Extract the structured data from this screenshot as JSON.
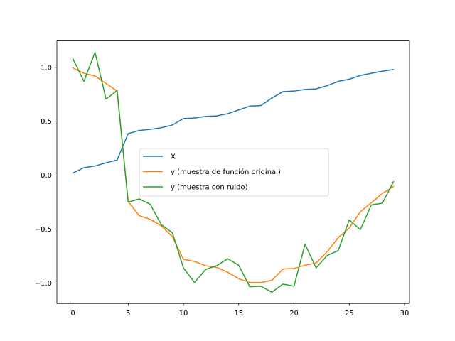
{
  "chart_data": {
    "type": "line",
    "title": "",
    "xlabel": "",
    "ylabel": "",
    "xlim": [
      -1.45,
      30.45
    ],
    "ylim": [
      -1.19,
      1.245
    ],
    "xticks": [
      0,
      5,
      10,
      15,
      20,
      25,
      30
    ],
    "yticks": [
      -1.0,
      -0.5,
      0.0,
      0.5,
      1.0
    ],
    "xtick_labels": [
      "0",
      "5",
      "10",
      "15",
      "20",
      "25",
      "30"
    ],
    "ytick_labels": [
      "−1.0",
      "−0.5",
      "0.0",
      "0.5",
      "1.0"
    ],
    "grid": false,
    "legend_position": "center",
    "x": [
      0,
      1,
      2,
      3,
      4,
      5,
      6,
      7,
      8,
      9,
      10,
      11,
      12,
      13,
      14,
      15,
      16,
      17,
      18,
      19,
      20,
      21,
      22,
      23,
      24,
      25,
      26,
      27,
      28,
      29
    ],
    "series": [
      {
        "name": "X",
        "color": "#1f77b4",
        "values": [
          0.02,
          0.07,
          0.085,
          0.115,
          0.14,
          0.385,
          0.415,
          0.425,
          0.44,
          0.465,
          0.525,
          0.53,
          0.545,
          0.55,
          0.57,
          0.605,
          0.64,
          0.645,
          0.715,
          0.775,
          0.78,
          0.795,
          0.8,
          0.83,
          0.87,
          0.89,
          0.925,
          0.945,
          0.965,
          0.98
        ]
      },
      {
        "name": "y (muestra de función original)",
        "color": "#ff7f0e",
        "values": [
          0.995,
          0.945,
          0.92,
          0.85,
          0.78,
          -0.245,
          -0.375,
          -0.41,
          -0.47,
          -0.57,
          -0.78,
          -0.8,
          -0.84,
          -0.855,
          -0.9,
          -0.96,
          -0.995,
          -0.995,
          -0.975,
          -0.87,
          -0.865,
          -0.835,
          -0.815,
          -0.71,
          -0.58,
          -0.49,
          -0.34,
          -0.255,
          -0.17,
          -0.105
        ]
      },
      {
        "name": "y (muestra con ruido)",
        "color": "#2ca02c",
        "values": [
          1.08,
          0.87,
          1.14,
          0.705,
          0.785,
          -0.25,
          -0.22,
          -0.27,
          -0.46,
          -0.535,
          -0.86,
          -0.995,
          -0.875,
          -0.84,
          -0.775,
          -0.835,
          -1.035,
          -1.03,
          -1.085,
          -1.01,
          -1.03,
          -0.64,
          -0.86,
          -0.745,
          -0.7,
          -0.415,
          -0.505,
          -0.275,
          -0.26,
          -0.06
        ]
      }
    ]
  }
}
